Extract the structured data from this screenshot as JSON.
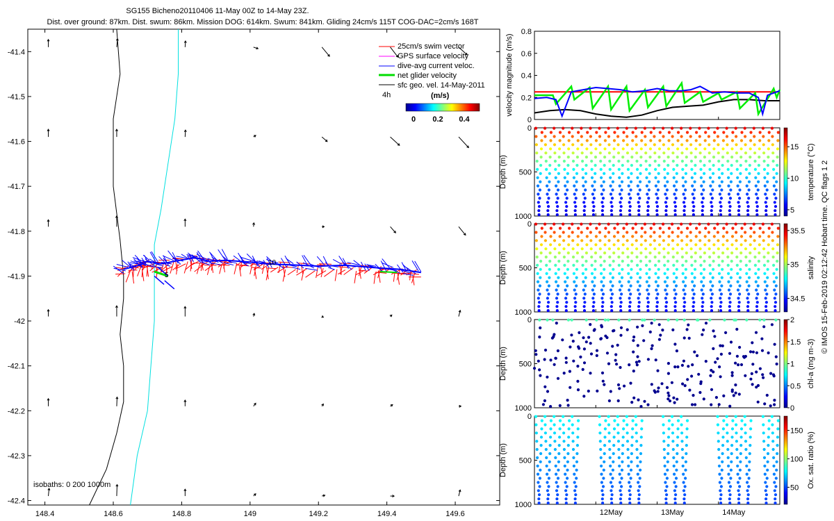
{
  "header": {
    "line1": "SG155 Bicheno20110406 11-May 00Z to 14-May 23Z.",
    "line2": "Dist. over ground: 87km. Dist. swum: 86km. Mission DOG: 614km. Swum: 841km. Gliding 24cm/s 115T COG-DAC=2cm/s 168T"
  },
  "chart_data": [
    {
      "type": "scatter",
      "name": "track map",
      "xlim": [
        148.35,
        149.73
      ],
      "ylim": [
        -42.41,
        -41.35
      ],
      "xticks": [
        148.4,
        148.6,
        148.8,
        149,
        149.2,
        149.4,
        149.6
      ],
      "xtick_labels": [
        "148.4",
        "148.6",
        "148.8",
        "149",
        "149.2",
        "149.4",
        "149.6"
      ],
      "yticks": [
        -41.4,
        -41.5,
        -41.6,
        -41.7,
        -41.8,
        -41.9,
        -42,
        -42.1,
        -42.2,
        -42.3,
        -42.4
      ],
      "ytick_labels": [
        "-41.4",
        "-41.5",
        "-41.6",
        "-41.7",
        "-41.8",
        "-41.9",
        "-42",
        "-42.1",
        "-42.2",
        "-42.3",
        "-42.4"
      ],
      "legend": [
        {
          "label": "25cm/s swim vector",
          "color": "#ff0000"
        },
        {
          "label": "GPS surface velocity",
          "color": "#ff00ff"
        },
        {
          "label": "dive-avg current veloc.",
          "color": "#0000ff"
        },
        {
          "label": "net glider velocity",
          "color": "#00dd00"
        },
        {
          "label": "sfc geo. vel. 14-May-2011",
          "color": "#000000"
        }
      ],
      "legend_extra": "4h",
      "colorbar": {
        "label": "(m/s)",
        "ticks": [
          "0",
          "0.2",
          "0.4"
        ]
      },
      "isobath_label": "isobaths: 0   200  1000m",
      "track_labels": [
        "5",
        "10"
      ],
      "isobath_0": {
        "lon": [
          148.61,
          148.62,
          148.6,
          148.6,
          148.62,
          148.63,
          148.63,
          148.62,
          148.63,
          148.63,
          148.61,
          148.58,
          148.53
        ],
        "lat": [
          -41.35,
          -41.45,
          -41.55,
          -41.7,
          -41.82,
          -41.9,
          -41.95,
          -42.03,
          -42.1,
          -42.18,
          -42.25,
          -42.33,
          -42.41
        ]
      },
      "isobath_1000": {
        "lon": [
          148.79,
          148.79,
          148.78,
          148.76,
          148.74,
          148.72,
          148.72,
          148.72,
          148.71,
          148.7,
          148.67,
          148.65
        ],
        "lat": [
          -41.35,
          -41.45,
          -41.55,
          -41.65,
          -41.75,
          -41.83,
          -41.9,
          -42.0,
          -42.1,
          -42.2,
          -42.3,
          -42.41
        ]
      },
      "sfc_vectors": [
        {
          "lon": 148.41,
          "lat": -41.39,
          "u": 0,
          "v": 1
        },
        {
          "lon": 148.61,
          "lat": -41.39,
          "u": 0.1,
          "v": 1.1
        },
        {
          "lon": 148.81,
          "lat": -41.39,
          "u": 0.05,
          "v": 0.8
        },
        {
          "lon": 149.01,
          "lat": -41.39,
          "u": 0.6,
          "v": -0.2
        },
        {
          "lon": 149.21,
          "lat": -41.39,
          "u": 1.0,
          "v": -1.2
        },
        {
          "lon": 149.41,
          "lat": -41.39,
          "u": 1.0,
          "v": -1.3
        },
        {
          "lon": 149.61,
          "lat": -41.39,
          "u": 1.1,
          "v": -1.0
        },
        {
          "lon": 148.41,
          "lat": -41.59,
          "u": 0,
          "v": 1
        },
        {
          "lon": 148.61,
          "lat": -41.59,
          "u": 0,
          "v": 1
        },
        {
          "lon": 148.81,
          "lat": -41.59,
          "u": 0.05,
          "v": 0.9
        },
        {
          "lon": 149.01,
          "lat": -41.59,
          "u": 0.3,
          "v": 0.2
        },
        {
          "lon": 149.21,
          "lat": -41.59,
          "u": 0.7,
          "v": -0.6
        },
        {
          "lon": 149.41,
          "lat": -41.59,
          "u": 1.2,
          "v": -1.1
        },
        {
          "lon": 149.61,
          "lat": -41.59,
          "u": 1.3,
          "v": -1.4
        },
        {
          "lon": 148.41,
          "lat": -41.79,
          "u": 0,
          "v": 0.9
        },
        {
          "lon": 148.61,
          "lat": -41.79,
          "u": 0,
          "v": 1.4
        },
        {
          "lon": 148.81,
          "lat": -41.79,
          "u": 0,
          "v": 1.0
        },
        {
          "lon": 149.01,
          "lat": -41.79,
          "u": 0.05,
          "v": 0.5
        },
        {
          "lon": 149.21,
          "lat": -41.79,
          "u": 0.3,
          "v": 0
        },
        {
          "lon": 149.41,
          "lat": -41.79,
          "u": 0.7,
          "v": -0.8
        },
        {
          "lon": 149.61,
          "lat": -41.79,
          "u": 0.9,
          "v": -1.1
        },
        {
          "lon": 148.41,
          "lat": -41.99,
          "u": 0,
          "v": 0.9
        },
        {
          "lon": 148.61,
          "lat": -41.99,
          "u": 0,
          "v": 1.4
        },
        {
          "lon": 148.81,
          "lat": -41.99,
          "u": 0,
          "v": 1.3
        },
        {
          "lon": 149.01,
          "lat": -41.99,
          "u": 0.1,
          "v": 0.4
        },
        {
          "lon": 149.21,
          "lat": -41.99,
          "u": 0.2,
          "v": -0.1
        },
        {
          "lon": 149.41,
          "lat": -41.99,
          "u": 0.2,
          "v": 0.2
        },
        {
          "lon": 149.61,
          "lat": -41.99,
          "u": 0.2,
          "v": 0.8
        },
        {
          "lon": 148.41,
          "lat": -42.19,
          "u": 0,
          "v": 1.0
        },
        {
          "lon": 148.61,
          "lat": -42.19,
          "u": 0.05,
          "v": 1.2
        },
        {
          "lon": 148.81,
          "lat": -42.19,
          "u": 0,
          "v": 0.8
        },
        {
          "lon": 149.01,
          "lat": -42.19,
          "u": 0.3,
          "v": 0.4
        },
        {
          "lon": 149.21,
          "lat": -42.19,
          "u": 0.2,
          "v": 0.3
        },
        {
          "lon": 149.41,
          "lat": -42.19,
          "u": 0.3,
          "v": 0.2
        },
        {
          "lon": 149.61,
          "lat": -42.19,
          "u": 0.3,
          "v": 0
        },
        {
          "lon": 148.41,
          "lat": -42.39,
          "u": 0.1,
          "v": 1.0
        },
        {
          "lon": 148.61,
          "lat": -42.39,
          "u": 0.05,
          "v": 1.5
        },
        {
          "lon": 148.81,
          "lat": -42.39,
          "u": 0,
          "v": 0.9
        },
        {
          "lon": 149.01,
          "lat": -42.39,
          "u": 0.3,
          "v": 0.3
        },
        {
          "lon": 149.21,
          "lat": -42.39,
          "u": 0.4,
          "v": 0.1
        },
        {
          "lon": 149.41,
          "lat": -42.39,
          "u": 0.5,
          "v": 0
        },
        {
          "lon": 149.61,
          "lat": -42.39,
          "u": 0.2,
          "v": 0.8
        }
      ],
      "track": {
        "lon": [
          148.63,
          148.68,
          148.7,
          148.74,
          148.78,
          148.84,
          148.88,
          148.93,
          149.0,
          149.05,
          149.12,
          149.2,
          149.28,
          149.36,
          149.44,
          149.5
        ],
        "lat": [
          -41.888,
          -41.878,
          -41.87,
          -41.876,
          -41.87,
          -41.862,
          -41.87,
          -41.868,
          -41.872,
          -41.876,
          -41.878,
          -41.881,
          -41.879,
          -41.884,
          -41.888,
          -41.895
        ]
      }
    },
    {
      "type": "line",
      "name": "velocity panel",
      "ylabel": "velocity magnitude (m/s)",
      "ylim": [
        0,
        0.8
      ],
      "yticks": [
        0,
        0.2,
        0.4,
        0.6,
        0.8
      ],
      "ytick_labels": [
        "0",
        "0.2",
        "0.4",
        "0.6",
        "0.8"
      ],
      "xlim": [
        0,
        4
      ],
      "series": [
        {
          "color": "#ff0000",
          "x": [
            0,
            4
          ],
          "values": [
            0.25,
            0.25
          ]
        },
        {
          "color": "#000000",
          "x": [
            0,
            0.25,
            0.5,
            0.75,
            1.0,
            1.25,
            1.5,
            1.75,
            2.0,
            2.25,
            2.5,
            2.75,
            3.0,
            3.25,
            3.5,
            3.75,
            4.0
          ],
          "values": [
            0.06,
            0.08,
            0.09,
            0.08,
            0.05,
            0.03,
            0.02,
            0.04,
            0.08,
            0.11,
            0.12,
            0.13,
            0.16,
            0.18,
            0.18,
            0.17,
            0.17
          ]
        },
        {
          "color": "#0000ff",
          "x": [
            0,
            0.2,
            0.35,
            0.45,
            0.6,
            0.8,
            1.0,
            1.2,
            1.4,
            1.6,
            1.8,
            2.0,
            2.2,
            2.4,
            2.55,
            2.7,
            2.9,
            3.1,
            3.3,
            3.5,
            3.65,
            3.72,
            3.8,
            4.0
          ],
          "values": [
            0.19,
            0.2,
            0.18,
            0.03,
            0.25,
            0.27,
            0.29,
            0.28,
            0.27,
            0.25,
            0.26,
            0.28,
            0.26,
            0.26,
            0.27,
            0.3,
            0.24,
            0.25,
            0.24,
            0.24,
            0.2,
            0.05,
            0.22,
            0.26
          ]
        },
        {
          "color": "#00ee00",
          "x": [
            0,
            0.3,
            0.35,
            0.6,
            0.65,
            0.9,
            0.95,
            1.2,
            1.25,
            1.5,
            1.55,
            1.8,
            1.85,
            2.1,
            2.15,
            2.4,
            2.45,
            2.7,
            2.75,
            3.0,
            3.05,
            3.3,
            3.35,
            3.6,
            3.65,
            3.9,
            3.95,
            4.0
          ],
          "values": [
            0.22,
            0.22,
            0.14,
            0.3,
            0.18,
            0.29,
            0.1,
            0.3,
            0.09,
            0.3,
            0.08,
            0.27,
            0.11,
            0.3,
            0.12,
            0.33,
            0.15,
            0.25,
            0.16,
            0.24,
            0.18,
            0.25,
            0.1,
            0.24,
            0.05,
            0.28,
            0.2,
            0.27
          ]
        }
      ]
    },
    {
      "type": "scatter",
      "name": "temperature section",
      "ylabel": "Depth (m)",
      "ylim": [
        1000,
        0
      ],
      "yticks": [
        0,
        500,
        1000
      ],
      "ytick_labels": [
        "0",
        "500",
        "1000"
      ],
      "colorbar_label": "temperature (°C)",
      "colorbar_ticks": [
        "5",
        "10",
        "15"
      ],
      "colorbar_range": [
        4,
        18
      ],
      "dives": 27,
      "profile": "temperature"
    },
    {
      "type": "scatter",
      "name": "salinity section",
      "ylabel": "Depth (m)",
      "ylim": [
        1000,
        0
      ],
      "yticks": [
        0,
        500,
        1000
      ],
      "ytick_labels": [
        "0",
        "500",
        "1000"
      ],
      "colorbar_label": "salinity",
      "colorbar_ticks": [
        "34.5",
        "35",
        "35.5"
      ],
      "colorbar_range": [
        34.3,
        35.6
      ],
      "dives": 27,
      "profile": "salinity"
    },
    {
      "type": "scatter",
      "name": "chl-a section",
      "ylabel": "Depth (m)",
      "ylim": [
        1000,
        0
      ],
      "yticks": [
        0,
        500,
        1000
      ],
      "ytick_labels": [
        "0",
        "500",
        "1000"
      ],
      "colorbar_label": "chl-a (mg m-3)",
      "colorbar_ticks": [
        "0",
        "0.5",
        "1",
        "1.5",
        "2"
      ],
      "colorbar_range": [
        0,
        2
      ],
      "dives": 27,
      "profile": "chl"
    },
    {
      "type": "scatter",
      "name": "oxygen section",
      "ylabel": "Depth (m)",
      "ylim": [
        1000,
        0
      ],
      "yticks": [
        0,
        500,
        1000
      ],
      "ytick_labels": [
        "0",
        "500",
        "1000"
      ],
      "colorbar_label": "Ox. sat. ratio (%)",
      "colorbar_ticks": [
        "50",
        "100",
        "150"
      ],
      "colorbar_range": [
        20,
        175
      ],
      "dives": 27,
      "profile": "oxygen",
      "xticks": [
        1,
        2,
        3
      ],
      "xtick_labels": [
        "12May",
        "13May",
        "14May"
      ]
    }
  ],
  "footer": {
    "side_note": "© IMOS 15-Feb-2019 02:12:42 Hobart time. QC flags 1  2"
  }
}
